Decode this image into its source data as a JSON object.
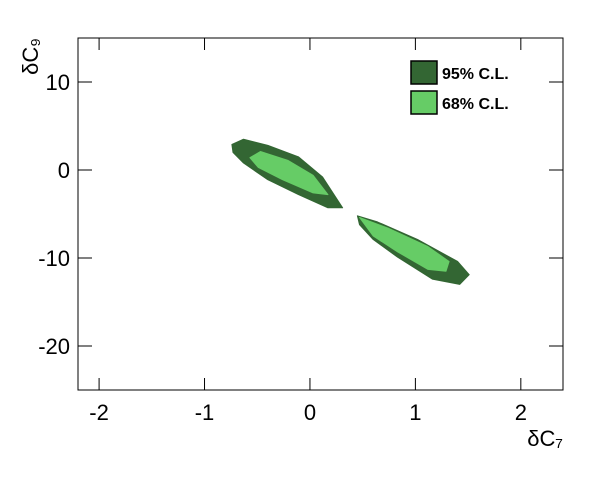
{
  "chart_data": {
    "type": "contour",
    "x_label": "δC₇",
    "y_label": "δC₉",
    "xlim": [
      -2.2,
      2.4
    ],
    "ylim": [
      -25,
      15
    ],
    "xticks": [
      -2,
      -1,
      0,
      1,
      2
    ],
    "yticks": [
      -20,
      -10,
      0,
      10
    ],
    "legend": "top-right",
    "series": [
      {
        "name": "95% C.L.",
        "color": "#336633",
        "regions": [
          {
            "x": [
              -0.74,
              -0.63,
              -0.4,
              -0.11,
              0.12,
              0.31,
              0.17,
              -0.11,
              -0.4,
              -0.63,
              -0.73
            ],
            "y": [
              2.9,
              3.5,
              2.8,
              1.5,
              -0.8,
              -4.3,
              -4.3,
              -2.8,
              -1.1,
              0.8,
              2.0
            ]
          },
          {
            "x": [
              0.45,
              0.64,
              1.02,
              1.4,
              1.51,
              1.42,
              1.16,
              0.83,
              0.6,
              0.47
            ],
            "y": [
              -5.2,
              -5.9,
              -7.9,
              -10.4,
              -11.9,
              -13.0,
              -12.4,
              -9.9,
              -7.9,
              -6.2
            ]
          }
        ]
      },
      {
        "name": "68% C.L.",
        "color": "#66cc66",
        "regions": [
          {
            "x": [
              -0.57,
              -0.47,
              -0.21,
              0.03,
              0.17,
              0.03,
              -0.26,
              -0.49
            ],
            "y": [
              1.4,
              2.1,
              1.1,
              -0.6,
              -2.8,
              -2.6,
              -1.1,
              0.3
            ]
          },
          {
            "x": [
              0.47,
              0.74,
              1.12,
              1.32,
              1.29,
              1.12,
              0.83,
              0.6
            ],
            "y": [
              -5.4,
              -6.6,
              -8.7,
              -10.4,
              -11.5,
              -11.3,
              -9.3,
              -7.5
            ]
          }
        ]
      }
    ]
  }
}
